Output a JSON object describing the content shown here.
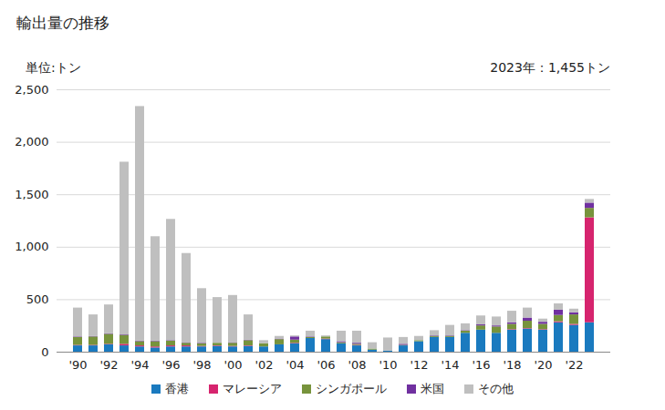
{
  "chart_data": {
    "type": "bar",
    "title": "輸出量の推移",
    "y_label": "単位:トン",
    "annotation": "2023年：1,455トン",
    "stacked": true,
    "grid": true,
    "legend": "bottom",
    "categories": [
      "'90",
      null,
      "'92",
      null,
      "'94",
      null,
      "'96",
      null,
      "'98",
      null,
      "'00",
      null,
      "'02",
      null,
      "'04",
      null,
      "'06",
      null,
      "'08",
      null,
      "'10",
      null,
      "'12",
      null,
      "'14",
      null,
      "'16",
      null,
      "'18",
      null,
      "'20",
      null,
      "'22",
      null
    ],
    "ylim": [
      0,
      2500
    ],
    "yticks": [
      0,
      500,
      {
        "value": 1000,
        "label": "1,000"
      },
      {
        "value": 1500,
        "label": "1,500"
      },
      {
        "value": 2000,
        "label": "2,000"
      },
      {
        "value": 2500,
        "label": "2,500"
      }
    ],
    "series": [
      {
        "name": "香港",
        "color": "#1a7abf",
        "values": [
          60,
          60,
          70,
          60,
          50,
          40,
          50,
          50,
          50,
          55,
          50,
          55,
          50,
          70,
          80,
          130,
          120,
          80,
          60,
          20,
          10,
          60,
          100,
          140,
          140,
          180,
          210,
          180,
          210,
          220,
          210,
          280,
          255,
          280
        ]
      },
      {
        "name": "マレーシア",
        "color": "#d6246e",
        "values": [
          5,
          5,
          5,
          15,
          10,
          10,
          10,
          10,
          5,
          5,
          5,
          5,
          0,
          0,
          5,
          0,
          5,
          0,
          5,
          0,
          0,
          0,
          0,
          0,
          0,
          0,
          0,
          0,
          5,
          5,
          5,
          10,
          10,
          1000
        ]
      },
      {
        "name": "シンガポール",
        "color": "#77933c",
        "values": [
          75,
          80,
          95,
          85,
          40,
          50,
          45,
          25,
          25,
          25,
          30,
          50,
          30,
          50,
          30,
          10,
          20,
          10,
          10,
          10,
          0,
          5,
          10,
          10,
          10,
          20,
          40,
          60,
          50,
          70,
          50,
          60,
          90,
          90
        ]
      },
      {
        "name": "米国",
        "color": "#7030a0",
        "values": [
          5,
          5,
          5,
          5,
          5,
          5,
          5,
          5,
          5,
          0,
          5,
          5,
          0,
          5,
          30,
          5,
          0,
          10,
          10,
          0,
          0,
          10,
          0,
          5,
          5,
          5,
          10,
          10,
          15,
          30,
          20,
          50,
          20,
          50
        ]
      },
      {
        "name": "その他",
        "color": "#bfbfbf",
        "values": [
          275,
          205,
          275,
          1645,
          2235,
          995,
          1155,
          850,
          520,
          435,
          450,
          240,
          30,
          25,
          10,
          55,
          10,
          100,
          115,
          60,
          125,
          65,
          40,
          50,
          100,
          65,
          85,
          85,
          110,
          95,
          30,
          60,
          35,
          35
        ]
      }
    ]
  }
}
